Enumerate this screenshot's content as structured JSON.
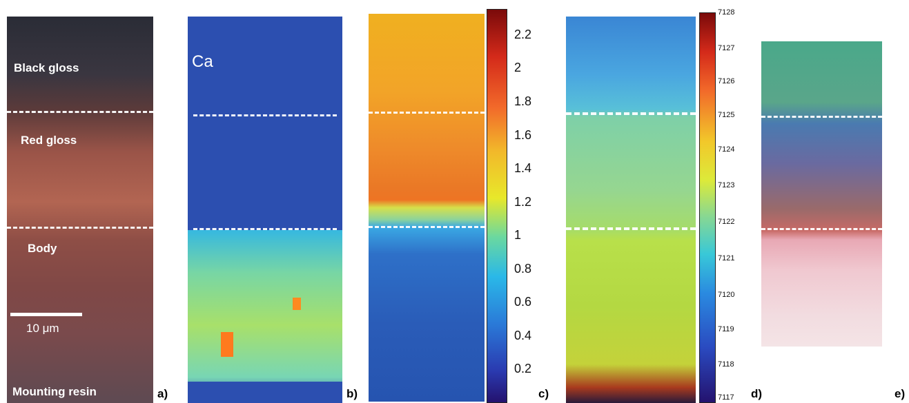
{
  "panel_a": {
    "labels": {
      "black_gloss": "Black gloss",
      "red_gloss": "Red gloss",
      "body": "Body",
      "mounting_resin": "Mounting resin",
      "scale": "10 μm"
    },
    "letter": "a)"
  },
  "panel_b": {
    "element": "Ca",
    "letter": "b)"
  },
  "panel_c": {
    "letter": "c)",
    "colorbar_ticks": [
      "2.2",
      "2",
      "1.8",
      "1.6",
      "1.4",
      "1.2",
      "1",
      "0.8",
      "0.6",
      "0.4",
      "0.2"
    ]
  },
  "panel_d": {
    "letter": "d)",
    "colorbar_ticks": [
      "7128",
      "7127",
      "7126",
      "7125",
      "7124",
      "7123",
      "7122",
      "7121",
      "7120",
      "7119",
      "7118",
      "7117"
    ]
  },
  "panel_e": {
    "letter": "e)"
  }
}
